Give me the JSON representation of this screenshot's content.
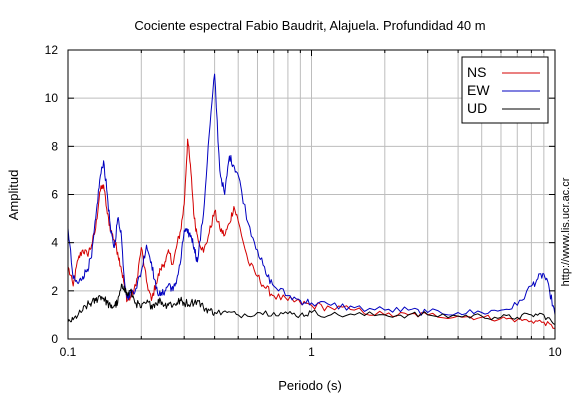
{
  "chart_data": {
    "type": "line",
    "title": "Cociente espectral Fabio Baudrit, Alajuela. Profundidad 40 m",
    "xlabel": "Periodo (s)",
    "ylabel": "Amplitud",
    "xscale": "log",
    "xlim": [
      0.1,
      10
    ],
    "ylim": [
      0,
      12
    ],
    "x_ticks": [
      0.1,
      1,
      10
    ],
    "x_tick_labels": [
      "0.1",
      "1",
      "10"
    ],
    "y_ticks": [
      0,
      2,
      4,
      6,
      8,
      10,
      12
    ],
    "y_tick_labels": [
      "0",
      "2",
      "4",
      "6",
      "8",
      "10",
      "12"
    ],
    "grid": true,
    "legend_position": "top-right",
    "credit": "http://www.lis.ucr.ac.cr",
    "series": [
      {
        "name": "NS",
        "color": "#d40000",
        "x": [
          0.1,
          0.105,
          0.11,
          0.115,
          0.12,
          0.125,
          0.13,
          0.135,
          0.14,
          0.145,
          0.15,
          0.155,
          0.16,
          0.165,
          0.17,
          0.175,
          0.18,
          0.19,
          0.2,
          0.21,
          0.22,
          0.23,
          0.24,
          0.25,
          0.26,
          0.27,
          0.28,
          0.29,
          0.3,
          0.31,
          0.32,
          0.33,
          0.34,
          0.36,
          0.38,
          0.4,
          0.42,
          0.44,
          0.46,
          0.48,
          0.5,
          0.55,
          0.6,
          0.65,
          0.7,
          0.8,
          0.9,
          1.0,
          1.2,
          1.5,
          2.0,
          2.5,
          3.0,
          4.0,
          5.0,
          6.0,
          7.0,
          8.0,
          9.0,
          10.0
        ],
        "values": [
          3.0,
          2.2,
          3.3,
          3.7,
          3.5,
          3.9,
          4.6,
          6.1,
          6.4,
          5.2,
          4.5,
          4.1,
          3.6,
          3.0,
          2.3,
          1.6,
          1.7,
          2.2,
          3.8,
          2.4,
          1.6,
          2.3,
          2.9,
          3.2,
          3.6,
          3.1,
          3.9,
          4.5,
          5.6,
          8.3,
          6.9,
          5.0,
          4.3,
          3.6,
          4.4,
          5.3,
          4.6,
          4.3,
          4.8,
          5.5,
          4.9,
          3.2,
          2.6,
          2.1,
          1.8,
          1.6,
          1.5,
          1.4,
          1.3,
          1.2,
          1.0,
          1.0,
          1.0,
          0.95,
          0.9,
          0.85,
          0.8,
          0.75,
          0.7,
          0.45
        ]
      },
      {
        "name": "EW",
        "color": "#0000c0",
        "x": [
          0.1,
          0.105,
          0.11,
          0.115,
          0.12,
          0.125,
          0.13,
          0.135,
          0.14,
          0.145,
          0.15,
          0.155,
          0.16,
          0.165,
          0.17,
          0.175,
          0.18,
          0.19,
          0.2,
          0.21,
          0.22,
          0.23,
          0.24,
          0.25,
          0.26,
          0.27,
          0.28,
          0.29,
          0.3,
          0.31,
          0.32,
          0.33,
          0.34,
          0.36,
          0.38,
          0.4,
          0.42,
          0.44,
          0.46,
          0.48,
          0.5,
          0.55,
          0.6,
          0.65,
          0.7,
          0.8,
          0.9,
          1.0,
          1.2,
          1.5,
          2.0,
          2.5,
          3.0,
          4.0,
          5.0,
          6.0,
          7.0,
          8.0,
          8.5,
          9.0,
          9.5,
          10.0
        ],
        "values": [
          4.6,
          2.5,
          2.3,
          2.6,
          2.9,
          3.4,
          5.0,
          6.6,
          7.4,
          6.0,
          4.4,
          3.8,
          5.0,
          4.5,
          2.6,
          1.7,
          1.9,
          2.1,
          2.8,
          3.9,
          3.2,
          2.1,
          1.8,
          2.0,
          2.3,
          2.0,
          2.5,
          3.2,
          4.5,
          4.4,
          4.3,
          3.8,
          3.2,
          5.2,
          8.5,
          11.0,
          7.0,
          6.0,
          7.6,
          7.2,
          6.8,
          4.8,
          3.7,
          2.7,
          2.2,
          1.8,
          1.6,
          1.5,
          1.4,
          1.3,
          1.2,
          1.2,
          1.1,
          1.1,
          1.1,
          1.2,
          1.4,
          2.2,
          2.5,
          2.7,
          2.0,
          1.0
        ]
      },
      {
        "name": "UD",
        "color": "#000000",
        "x": [
          0.1,
          0.105,
          0.11,
          0.115,
          0.12,
          0.125,
          0.13,
          0.135,
          0.14,
          0.145,
          0.15,
          0.155,
          0.16,
          0.165,
          0.17,
          0.175,
          0.18,
          0.19,
          0.2,
          0.21,
          0.22,
          0.23,
          0.24,
          0.25,
          0.26,
          0.27,
          0.28,
          0.29,
          0.3,
          0.32,
          0.34,
          0.36,
          0.38,
          0.4,
          0.45,
          0.5,
          0.6,
          0.7,
          0.8,
          0.9,
          1.0,
          1.2,
          1.5,
          2.0,
          2.5,
          3.0,
          4.0,
          5.0,
          6.0,
          7.0,
          8.0,
          9.0,
          10.0
        ],
        "values": [
          0.7,
          0.8,
          1.0,
          1.2,
          1.4,
          1.5,
          1.6,
          1.8,
          1.7,
          1.5,
          1.3,
          1.4,
          1.5,
          2.1,
          2.2,
          1.8,
          2.0,
          1.5,
          1.3,
          1.5,
          1.4,
          1.5,
          1.6,
          1.4,
          1.5,
          1.4,
          1.5,
          1.6,
          1.5,
          1.5,
          1.6,
          1.3,
          1.2,
          1.1,
          1.1,
          1.0,
          1.1,
          1.1,
          1.05,
          1.0,
          1.1,
          1.0,
          1.0,
          1.0,
          1.0,
          1.0,
          0.95,
          0.95,
          0.9,
          0.9,
          1.0,
          1.0,
          0.6
        ]
      }
    ]
  }
}
